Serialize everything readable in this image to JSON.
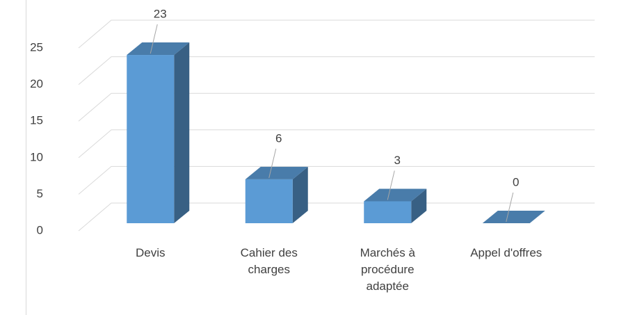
{
  "chart_data": {
    "type": "bar3d",
    "categories": [
      "Devis",
      "Cahier des charges",
      "Marchés à procédure adaptée",
      "Appel d'offres"
    ],
    "values": [
      23,
      6,
      3,
      0
    ],
    "color": "#5b9bd5",
    "ylim": [
      0,
      25
    ],
    "yticks": [
      0,
      5,
      10,
      15,
      20,
      25
    ],
    "grid": true
  }
}
